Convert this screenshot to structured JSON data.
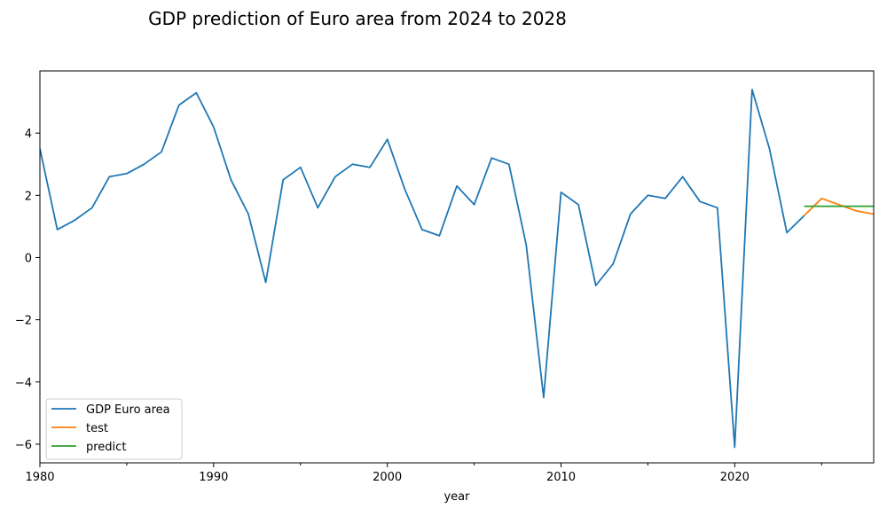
{
  "chart_data": {
    "type": "line",
    "title": "GDP prediction of Euro area from 2024 to 2028",
    "xlabel": "year",
    "ylabel": "",
    "xlim": [
      1980,
      2028
    ],
    "ylim": [
      -6.6,
      6.0
    ],
    "xticks": [
      1980,
      1990,
      2000,
      2010,
      2020
    ],
    "xminor": [
      1985,
      1995,
      2005,
      2015,
      2025
    ],
    "yticks": [
      -6,
      -4,
      -2,
      0,
      2,
      4
    ],
    "grid": false,
    "legend_position": "lower-left",
    "series": [
      {
        "name": "GDP Euro area",
        "color": "#1f77b4",
        "x": [
          1980,
          1981,
          1982,
          1983,
          1984,
          1985,
          1986,
          1987,
          1988,
          1989,
          1990,
          1991,
          1992,
          1993,
          1994,
          1995,
          1996,
          1997,
          1998,
          1999,
          2000,
          2001,
          2002,
          2003,
          2004,
          2005,
          2006,
          2007,
          2008,
          2009,
          2010,
          2011,
          2012,
          2013,
          2014,
          2015,
          2016,
          2017,
          2018,
          2019,
          2020,
          2021,
          2022,
          2023,
          2024
        ],
        "y": [
          3.5,
          0.9,
          1.2,
          1.6,
          2.6,
          2.7,
          3.0,
          3.4,
          4.9,
          5.3,
          4.2,
          2.5,
          1.4,
          -0.8,
          2.5,
          2.9,
          1.6,
          2.6,
          3.0,
          2.9,
          3.8,
          2.2,
          0.9,
          0.7,
          2.3,
          1.7,
          3.2,
          3.0,
          0.4,
          -4.5,
          2.1,
          1.7,
          -0.9,
          -0.2,
          1.4,
          2.0,
          1.9,
          2.6,
          1.8,
          1.6,
          -6.1,
          5.4,
          3.5,
          0.8,
          1.35
        ]
      },
      {
        "name": "test",
        "color": "#ff7f0e",
        "x": [
          2024,
          2025,
          2026,
          2027,
          2028
        ],
        "y": [
          1.35,
          1.9,
          1.7,
          1.5,
          1.4
        ]
      },
      {
        "name": "predict",
        "color": "#2ca02c",
        "x": [
          2024,
          2025,
          2026,
          2027,
          2028
        ],
        "y": [
          1.65,
          1.65,
          1.65,
          1.65,
          1.65
        ]
      }
    ]
  }
}
